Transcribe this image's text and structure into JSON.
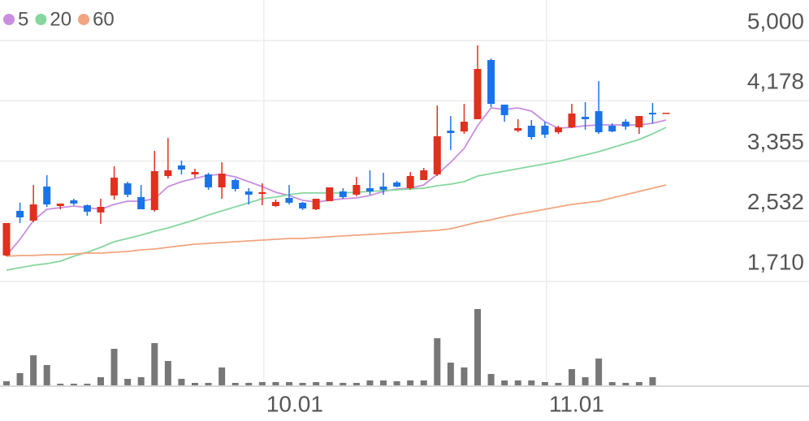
{
  "chart_data": {
    "type": "candlestick",
    "legend": "top-left",
    "grid": true,
    "up_color": "#e0301e",
    "down_color": "#1a73e8",
    "volume_color": "#777777",
    "ylim": [
      1710,
      5000
    ],
    "yticks": [
      {
        "value": 1710,
        "label": "1,710"
      },
      {
        "value": 2532,
        "label": "2,532"
      },
      {
        "value": 3355,
        "label": "3,355"
      },
      {
        "value": 4178,
        "label": "4,178"
      },
      {
        "value": 5000,
        "label": "5,000"
      }
    ],
    "categories": [
      null,
      null,
      null,
      null,
      null,
      null,
      null,
      null,
      null,
      null,
      null,
      null,
      null,
      null,
      null,
      null,
      null,
      null,
      null,
      "10.01",
      null,
      null,
      null,
      null,
      null,
      null,
      null,
      null,
      null,
      null,
      null,
      null,
      null,
      null,
      null,
      null,
      null,
      null,
      null,
      null,
      "11.01",
      null,
      null,
      null,
      null,
      null,
      null,
      null,
      null,
      null
    ],
    "open": [
      2065,
      2674,
      2541,
      3006,
      2740,
      2818,
      2751,
      2652,
      2884,
      3050,
      2862,
      2685,
      3150,
      3294,
      3172,
      3172,
      2995,
      3095,
      2940,
      2906,
      2740,
      2851,
      2785,
      2696,
      2807,
      2940,
      2895,
      2984,
      3006,
      3062,
      2984,
      3095,
      3172,
      3770,
      3759,
      3926,
      4734,
      4125,
      3770,
      3837,
      3837,
      3748,
      3815,
      3959,
      4036,
      3837,
      3892,
      3815,
      4014,
      4014
    ],
    "high": [
      2508,
      2785,
      3028,
      3161,
      2774,
      2840,
      2762,
      2840,
      3283,
      3073,
      3028,
      3494,
      3671,
      3361,
      3250,
      3194,
      3338,
      3117,
      2984,
      3050,
      2829,
      3028,
      2796,
      2840,
      2995,
      2984,
      3139,
      3228,
      3194,
      3084,
      3206,
      3261,
      4114,
      3970,
      4136,
      4934,
      4756,
      4125,
      3926,
      3914,
      3892,
      3837,
      4136,
      4158,
      4446,
      3870,
      3926,
      3970,
      4147,
      4014
    ],
    "low": [
      2054,
      2508,
      2519,
      2729,
      2696,
      2751,
      2607,
      2497,
      2829,
      2862,
      2696,
      2663,
      3117,
      3172,
      3128,
      2962,
      2840,
      2940,
      2762,
      2751,
      2729,
      2762,
      2685,
      2685,
      2807,
      2840,
      2873,
      2895,
      2895,
      2995,
      2962,
      3095,
      3150,
      3505,
      3726,
      3926,
      4092,
      3892,
      3748,
      3649,
      3671,
      3726,
      3804,
      3782,
      3726,
      3748,
      3782,
      3726,
      3870,
      4014
    ],
    "close": [
      2508,
      2585,
      2762,
      2762,
      2774,
      2774,
      2663,
      2729,
      3128,
      2895,
      2696,
      3217,
      3228,
      3239,
      3206,
      2995,
      3183,
      2973,
      2895,
      2929,
      2796,
      2785,
      2707,
      2840,
      2995,
      2862,
      3028,
      2940,
      2962,
      3006,
      3150,
      3228,
      3693,
      3737,
      3892,
      4612,
      4136,
      3981,
      3804,
      3682,
      3715,
      3815,
      4003,
      3926,
      3748,
      3759,
      3826,
      3970,
      3992,
      4014
    ],
    "volume": [
      5,
      15,
      37,
      25,
      2,
      2,
      2,
      10,
      45,
      8,
      10,
      52,
      30,
      8,
      3,
      3,
      22,
      3,
      3,
      4,
      4,
      4,
      3,
      4,
      4,
      3,
      3,
      6,
      6,
      5,
      6,
      6,
      58,
      28,
      22,
      94,
      14,
      6,
      6,
      6,
      4,
      3,
      20,
      10,
      33,
      4,
      3,
      4,
      10,
      0
    ],
    "series": [
      {
        "name": "5",
        "color": "#c98ee0",
        "values": [
          2065,
          2286,
          2541,
          2696,
          2718,
          2740,
          2718,
          2696,
          2762,
          2807,
          2807,
          2840,
          3006,
          3073,
          3117,
          3161,
          3172,
          3139,
          3073,
          3006,
          2929,
          2884,
          2818,
          2796,
          2818,
          2840,
          2851,
          2884,
          2940,
          2973,
          2984,
          3028,
          3172,
          3338,
          3527,
          3837,
          4081,
          4058,
          4081,
          4036,
          3892,
          3804,
          3815,
          3837,
          3848,
          3848,
          3848,
          3848,
          3870,
          3914
        ]
      },
      {
        "name": "20",
        "color": "#86d69e",
        "values": [
          1865,
          1898,
          1932,
          1954,
          1987,
          2054,
          2109,
          2176,
          2253,
          2297,
          2342,
          2397,
          2441,
          2497,
          2552,
          2618,
          2674,
          2729,
          2785,
          2840,
          2862,
          2895,
          2918,
          2918,
          2918,
          2918,
          2929,
          2940,
          2951,
          2962,
          2973,
          2984,
          3017,
          3039,
          3073,
          3150,
          3183,
          3217,
          3250,
          3283,
          3316,
          3350,
          3394,
          3438,
          3482,
          3538,
          3593,
          3649,
          3726,
          3815
        ]
      },
      {
        "name": "60",
        "color": "#f2a57f",
        "values": [
          2054,
          2065,
          2065,
          2076,
          2076,
          2087,
          2098,
          2098,
          2109,
          2120,
          2142,
          2153,
          2176,
          2198,
          2220,
          2231,
          2242,
          2253,
          2264,
          2275,
          2286,
          2297,
          2297,
          2308,
          2320,
          2331,
          2342,
          2353,
          2364,
          2375,
          2386,
          2397,
          2408,
          2430,
          2474,
          2519,
          2552,
          2596,
          2630,
          2663,
          2696,
          2729,
          2762,
          2785,
          2807,
          2851,
          2895,
          2940,
          2984,
          3028
        ]
      }
    ]
  }
}
